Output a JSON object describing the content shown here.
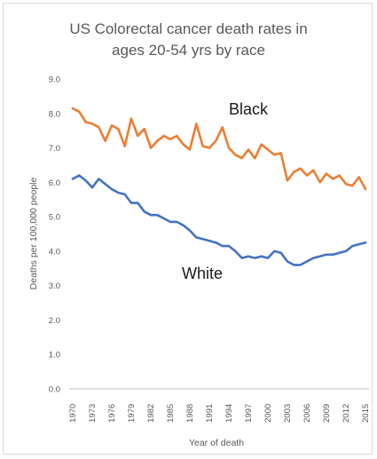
{
  "chart_data": {
    "type": "line",
    "title_line1": "US Colorectal cancer death rates in",
    "title_line2": "ages 20-54 yrs by race",
    "xlabel": "Year of death",
    "ylabel": "Deaths per 100,000 people",
    "ylim": [
      0,
      9
    ],
    "yticks": [
      "0.0",
      "1.0",
      "2.0",
      "3.0",
      "4.0",
      "5.0",
      "6.0",
      "7.0",
      "8.0",
      "9.0"
    ],
    "xlim": [
      1970,
      2015
    ],
    "xticks": [
      "1970",
      "1973",
      "1976",
      "1979",
      "1982",
      "1985",
      "1988",
      "1991",
      "1994",
      "1997",
      "2000",
      "2003",
      "2006",
      "2009",
      "2012",
      "2015"
    ],
    "grid": false,
    "legend": "none",
    "x": [
      1970,
      1971,
      1972,
      1973,
      1974,
      1975,
      1976,
      1977,
      1978,
      1979,
      1980,
      1981,
      1982,
      1983,
      1984,
      1985,
      1986,
      1987,
      1988,
      1989,
      1990,
      1991,
      1992,
      1993,
      1994,
      1995,
      1996,
      1997,
      1998,
      1999,
      2000,
      2001,
      2002,
      2003,
      2004,
      2005,
      2006,
      2007,
      2008,
      2009,
      2010,
      2011,
      2012,
      2013,
      2014,
      2015
    ],
    "series": [
      {
        "name": "Black",
        "color": "#ED7D31",
        "values": [
          8.15,
          8.05,
          7.75,
          7.7,
          7.6,
          7.2,
          7.65,
          7.55,
          7.05,
          7.85,
          7.35,
          7.55,
          7.0,
          7.2,
          7.35,
          7.25,
          7.35,
          7.1,
          6.95,
          7.7,
          7.05,
          7.0,
          7.2,
          7.6,
          7.0,
          6.8,
          6.7,
          6.95,
          6.7,
          7.1,
          6.95,
          6.8,
          6.85,
          6.05,
          6.3,
          6.4,
          6.2,
          6.35,
          6.0,
          6.25,
          6.1,
          6.2,
          5.95,
          5.9,
          6.15,
          5.8
        ]
      },
      {
        "name": "White",
        "color": "#4472C4",
        "values": [
          6.1,
          6.2,
          6.05,
          5.85,
          6.1,
          5.95,
          5.8,
          5.7,
          5.65,
          5.4,
          5.4,
          5.15,
          5.05,
          5.05,
          4.95,
          4.85,
          4.85,
          4.75,
          4.6,
          4.4,
          4.35,
          4.3,
          4.25,
          4.15,
          4.15,
          4.0,
          3.8,
          3.85,
          3.8,
          3.85,
          3.8,
          4.0,
          3.95,
          3.7,
          3.6,
          3.6,
          3.7,
          3.8,
          3.85,
          3.9,
          3.9,
          3.95,
          4.0,
          4.15,
          4.2,
          4.25
        ]
      }
    ]
  }
}
